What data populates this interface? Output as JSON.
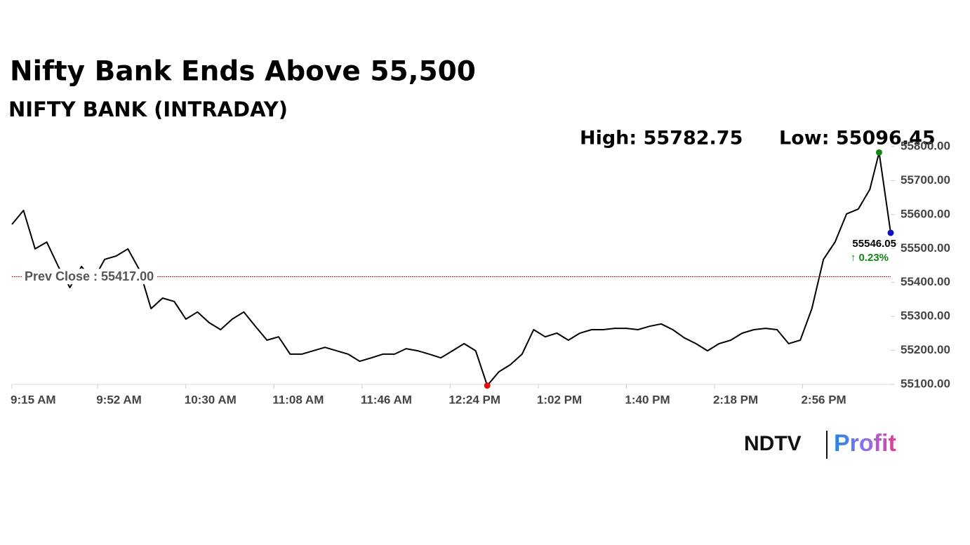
{
  "chart_data": {
    "type": "line",
    "title": "Nifty Bank Ends Above 55,500",
    "subtitle": "NIFTY BANK (INTRADAY)",
    "high_text": "High: 55782.75",
    "low_text": "Low: 55096.45",
    "change_text": "↑ 0.23%",
    "prev_close": {
      "value": 55417,
      "label": "Prev Close : 55417.00"
    },
    "x": [
      "9:15 AM",
      "9:20 AM",
      "9:25 AM",
      "9:30 AM",
      "9:35 AM",
      "9:40 AM",
      "9:45 AM",
      "9:50 AM",
      "9:55 AM",
      "10:00 AM",
      "10:05 AM",
      "10:10 AM",
      "10:15 AM",
      "10:20 AM",
      "10:25 AM",
      "10:30 AM",
      "10:35 AM",
      "10:40 AM",
      "10:45 AM",
      "10:50 AM",
      "10:55 AM",
      "11:00 AM",
      "11:05 AM",
      "11:10 AM",
      "11:15 AM",
      "11:20 AM",
      "11:25 AM",
      "11:30 AM",
      "11:35 AM",
      "11:40 AM",
      "11:45 AM",
      "11:50 AM",
      "11:55 AM",
      "12:00 PM",
      "12:05 PM",
      "12:10 PM",
      "12:15 PM",
      "12:20 PM",
      "12:25 PM",
      "12:30 PM",
      "12:35 PM",
      "12:40 PM",
      "12:45 PM",
      "12:50 PM",
      "12:55 PM",
      "1:00 PM",
      "1:05 PM",
      "1:10 PM",
      "1:15 PM",
      "1:20 PM",
      "1:25 PM",
      "1:30 PM",
      "1:35 PM",
      "1:40 PM",
      "1:45 PM",
      "1:50 PM",
      "1:55 PM",
      "2:00 PM",
      "2:05 PM",
      "2:10 PM",
      "2:15 PM",
      "2:20 PM",
      "2:25 PM",
      "2:30 PM",
      "2:35 PM",
      "2:40 PM",
      "2:45 PM",
      "2:50 PM",
      "2:55 PM",
      "3:00 PM",
      "3:05 PM",
      "3:10 PM",
      "3:15 PM",
      "3:20 PM",
      "3:25 PM",
      "3:29 PM",
      "3:34 PM"
    ],
    "values": [
      55571,
      55612,
      55499,
      55519,
      55447,
      55385,
      55447,
      55406,
      55468,
      55478,
      55499,
      55437,
      55323,
      55354,
      55344,
      55292,
      55313,
      55282,
      55261,
      55292,
      55313,
      55271,
      55230,
      55240,
      55189,
      55189,
      55199,
      55209,
      55199,
      55189,
      55168,
      55178,
      55189,
      55189,
      55205,
      55199,
      55189,
      55178,
      55199,
      55220,
      55199,
      55096.45,
      55137,
      55158,
      55189,
      55261,
      55240,
      55251,
      55230,
      55251,
      55261,
      55261,
      55265,
      55265,
      55261,
      55271,
      55278,
      55261,
      55237,
      55220,
      55199,
      55220,
      55230,
      55251,
      55261,
      55265,
      55261,
      55220,
      55230,
      55323,
      55468,
      55519,
      55602,
      55616,
      55674,
      55782.75,
      55546.05
    ],
    "color": "#000000",
    "high_color": "#118811",
    "low_color": "#e01010",
    "last_color": "#1010cc",
    "prev_close_color": "#cc2222",
    "change_color": "#118811",
    "xlim": [
      "9:15 AM",
      "3:34 PM"
    ],
    "xticks": [
      "9:15 AM",
      "9:52 AM",
      "10:30 AM",
      "11:08 AM",
      "11:46 AM",
      "12:24 PM",
      "1:02 PM",
      "1:40 PM",
      "2:18 PM",
      "2:56 PM"
    ],
    "ylim": [
      55100,
      55800
    ],
    "yticks": [
      {
        "value": 55100,
        "label": "55100.00"
      },
      {
        "value": 55200,
        "label": "55200.00"
      },
      {
        "value": 55300,
        "label": "55300.00"
      },
      {
        "value": 55400,
        "label": "55400.00"
      },
      {
        "value": 55500,
        "label": "55500.00"
      },
      {
        "value": 55600,
        "label": "55600.00"
      },
      {
        "value": 55700,
        "label": "55700.00"
      },
      {
        "value": 55800,
        "label": "55800.00"
      }
    ]
  },
  "logo": {
    "left": "NDTV",
    "right": "Profit"
  }
}
